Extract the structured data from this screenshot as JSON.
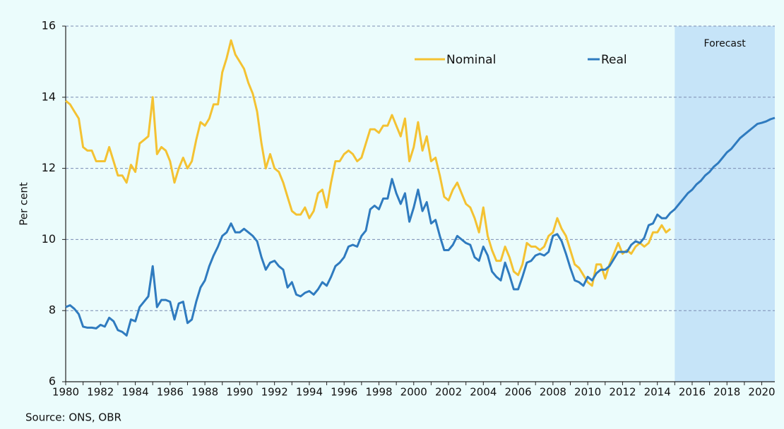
{
  "chart_data": {
    "type": "line",
    "y_label": "Per cent",
    "source": "Source: ONS, OBR",
    "annotation": "Forecast",
    "forecast_start": 2015,
    "xlim": [
      1980,
      2020.75
    ],
    "xticks": [
      1980,
      1982,
      1984,
      1986,
      1988,
      1990,
      1992,
      1994,
      1996,
      1998,
      2000,
      2002,
      2004,
      2006,
      2008,
      2010,
      2012,
      2014,
      2016,
      2018,
      2020
    ],
    "ylim": [
      6,
      16
    ],
    "yticks": [
      6,
      8,
      10,
      12,
      14,
      16
    ],
    "grid": true,
    "x": [
      1980,
      1980.25,
      1980.5,
      1980.75,
      1981,
      1981.25,
      1981.5,
      1981.75,
      1982,
      1982.25,
      1982.5,
      1982.75,
      1983,
      1983.25,
      1983.5,
      1983.75,
      1984,
      1984.25,
      1984.5,
      1984.75,
      1985,
      1985.25,
      1985.5,
      1985.75,
      1986,
      1986.25,
      1986.5,
      1986.75,
      1987,
      1987.25,
      1987.5,
      1987.75,
      1988,
      1988.25,
      1988.5,
      1988.75,
      1989,
      1989.25,
      1989.5,
      1989.75,
      1990,
      1990.25,
      1990.5,
      1990.75,
      1991,
      1991.25,
      1991.5,
      1991.75,
      1992,
      1992.25,
      1992.5,
      1992.75,
      1993,
      1993.25,
      1993.5,
      1993.75,
      1994,
      1994.25,
      1994.5,
      1994.75,
      1995,
      1995.25,
      1995.5,
      1995.75,
      1996,
      1996.25,
      1996.5,
      1996.75,
      1997,
      1997.25,
      1997.5,
      1997.75,
      1998,
      1998.25,
      1998.5,
      1998.75,
      1999,
      1999.25,
      1999.5,
      1999.75,
      2000,
      2000.25,
      2000.5,
      2000.75,
      2001,
      2001.25,
      2001.5,
      2001.75,
      2002,
      2002.25,
      2002.5,
      2002.75,
      2003,
      2003.25,
      2003.5,
      2003.75,
      2004,
      2004.25,
      2004.5,
      2004.75,
      2005,
      2005.25,
      2005.5,
      2005.75,
      2006,
      2006.25,
      2006.5,
      2006.75,
      2007,
      2007.25,
      2007.5,
      2007.75,
      2008,
      2008.25,
      2008.5,
      2008.75,
      2009,
      2009.25,
      2009.5,
      2009.75,
      2010,
      2010.25,
      2010.5,
      2010.75,
      2011,
      2011.25,
      2011.5,
      2011.75,
      2012,
      2012.25,
      2012.5,
      2012.75,
      2013,
      2013.25,
      2013.5,
      2013.75,
      2014,
      2014.25,
      2014.5,
      2014.75,
      2015,
      2015.25,
      2015.5,
      2015.75,
      2016,
      2016.25,
      2016.5,
      2016.75,
      2017,
      2017.25,
      2017.5,
      2017.75,
      2018,
      2018.25,
      2018.5,
      2018.75,
      2019,
      2019.25,
      2019.5,
      2019.75,
      2020,
      2020.25,
      2020.5,
      2020.75
    ],
    "series": [
      {
        "name": "Nominal",
        "color": "#f4c232",
        "values": [
          13.9,
          13.8,
          13.6,
          13.4,
          12.6,
          12.5,
          12.5,
          12.2,
          12.2,
          12.2,
          12.6,
          12.2,
          11.8,
          11.8,
          11.6,
          12.1,
          11.9,
          12.7,
          12.8,
          12.9,
          14.0,
          12.4,
          12.6,
          12.5,
          12.2,
          11.6,
          12.0,
          12.3,
          12.0,
          12.2,
          12.8,
          13.3,
          13.2,
          13.4,
          13.8,
          13.8,
          14.7,
          15.1,
          15.6,
          15.2,
          15.0,
          14.8,
          14.4,
          14.1,
          13.6,
          12.7,
          12.0,
          12.4,
          12.0,
          11.9,
          11.6,
          11.2,
          10.8,
          10.7,
          10.7,
          10.9,
          10.6,
          10.8,
          11.3,
          11.4,
          10.9,
          11.6,
          12.2,
          12.2,
          12.4,
          12.5,
          12.4,
          12.2,
          12.3,
          12.7,
          13.1,
          13.1,
          13.0,
          13.2,
          13.2,
          13.5,
          13.2,
          12.9,
          13.4,
          12.2,
          12.6,
          13.3,
          12.5,
          12.9,
          12.2,
          12.3,
          11.8,
          11.2,
          11.1,
          11.4,
          11.6,
          11.3,
          11.0,
          10.9,
          10.6,
          10.2,
          10.9,
          10.1,
          9.7,
          9.4,
          9.4,
          9.8,
          9.5,
          9.1,
          9.0,
          9.3,
          9.9,
          9.8,
          9.8,
          9.7,
          9.8,
          10.1,
          10.2,
          10.6,
          10.3,
          10.1,
          9.7,
          9.3,
          9.2,
          9.0,
          8.8,
          8.7,
          9.3,
          9.3,
          8.9,
          9.3,
          9.6,
          9.9,
          9.6,
          9.7,
          9.6,
          9.8,
          9.9,
          9.8,
          9.9,
          10.2,
          10.2,
          10.4,
          10.2,
          10.3,
          null,
          null,
          null,
          null,
          null,
          null,
          null,
          null,
          null,
          null,
          null,
          null,
          null,
          null,
          null,
          null,
          null,
          null,
          null,
          null,
          null,
          null,
          null,
          null
        ]
      },
      {
        "name": "Real",
        "color": "#2f7bbf",
        "values": [
          8.1,
          8.15,
          8.05,
          7.9,
          7.55,
          7.52,
          7.52,
          7.5,
          7.6,
          7.55,
          7.8,
          7.7,
          7.45,
          7.4,
          7.3,
          7.75,
          7.7,
          8.1,
          8.25,
          8.4,
          9.25,
          8.1,
          8.3,
          8.3,
          8.25,
          7.75,
          8.2,
          8.25,
          7.65,
          7.75,
          8.25,
          8.65,
          8.85,
          9.25,
          9.55,
          9.8,
          10.1,
          10.2,
          10.45,
          10.2,
          10.2,
          10.3,
          10.2,
          10.1,
          9.95,
          9.5,
          9.15,
          9.35,
          9.4,
          9.25,
          9.15,
          8.65,
          8.8,
          8.45,
          8.4,
          8.5,
          8.55,
          8.45,
          8.6,
          8.8,
          8.7,
          8.95,
          9.25,
          9.35,
          9.5,
          9.8,
          9.85,
          9.8,
          10.1,
          10.25,
          10.85,
          10.95,
          10.85,
          11.15,
          11.15,
          11.7,
          11.3,
          11.0,
          11.3,
          10.5,
          10.9,
          11.4,
          10.8,
          11.05,
          10.45,
          10.55,
          10.1,
          9.7,
          9.7,
          9.85,
          10.1,
          10.0,
          9.9,
          9.85,
          9.5,
          9.4,
          9.8,
          9.55,
          9.1,
          8.95,
          8.85,
          9.35,
          9.0,
          8.6,
          8.6,
          8.95,
          9.35,
          9.4,
          9.55,
          9.6,
          9.55,
          9.65,
          10.1,
          10.15,
          9.95,
          9.6,
          9.2,
          8.85,
          8.8,
          8.7,
          8.95,
          8.85,
          9.05,
          9.15,
          9.15,
          9.25,
          9.45,
          9.65,
          9.65,
          9.65,
          9.85,
          9.95,
          9.9,
          10.05,
          10.4,
          10.45,
          10.7,
          10.6,
          10.6,
          10.75,
          10.85,
          11.0,
          11.15,
          11.3,
          11.4,
          11.55,
          11.65,
          11.8,
          11.9,
          12.05,
          12.15,
          12.3,
          12.45,
          12.55,
          12.7,
          12.85,
          12.95,
          13.05,
          13.15,
          13.25,
          13.28,
          13.32,
          13.38,
          13.42
        ]
      }
    ]
  }
}
